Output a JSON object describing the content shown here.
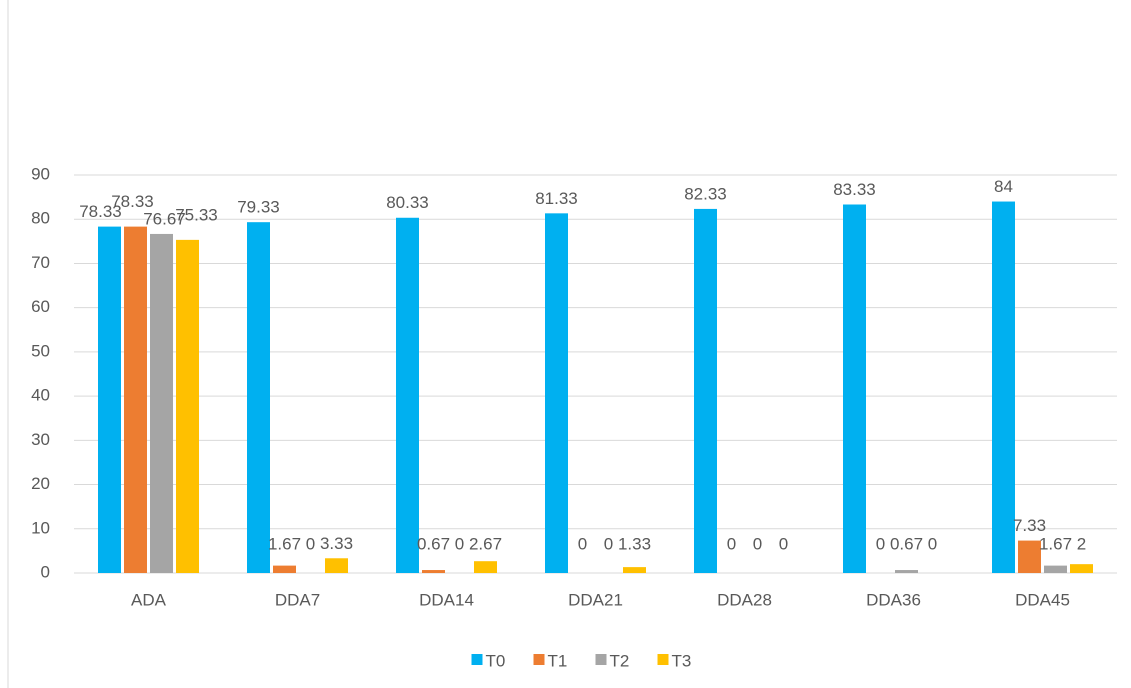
{
  "chart_data": {
    "type": "bar",
    "categories": [
      "ADA",
      "DDA7",
      "DDA14",
      "DDA21",
      "DDA28",
      "DDA36",
      "DDA45"
    ],
    "series": [
      {
        "name": "T0",
        "color": "#00b0f0",
        "values": [
          78.33,
          79.33,
          80.33,
          81.33,
          82.33,
          83.33,
          84
        ]
      },
      {
        "name": "T1",
        "color": "#ed7d31",
        "values": [
          78.33,
          1.67,
          0.67,
          0,
          0,
          0,
          7.33
        ]
      },
      {
        "name": "T2",
        "color": "#a5a5a5",
        "values": [
          76.67,
          0,
          0,
          0,
          0,
          0.67,
          1.67
        ]
      },
      {
        "name": "T3",
        "color": "#ffc000",
        "values": [
          75.33,
          3.33,
          2.67,
          1.33,
          0,
          0,
          2
        ]
      }
    ],
    "ylim": [
      0,
      90
    ],
    "yticks": [
      0,
      10,
      20,
      30,
      40,
      50,
      60,
      70,
      80,
      90
    ],
    "grid": true,
    "legend": "bottom"
  }
}
